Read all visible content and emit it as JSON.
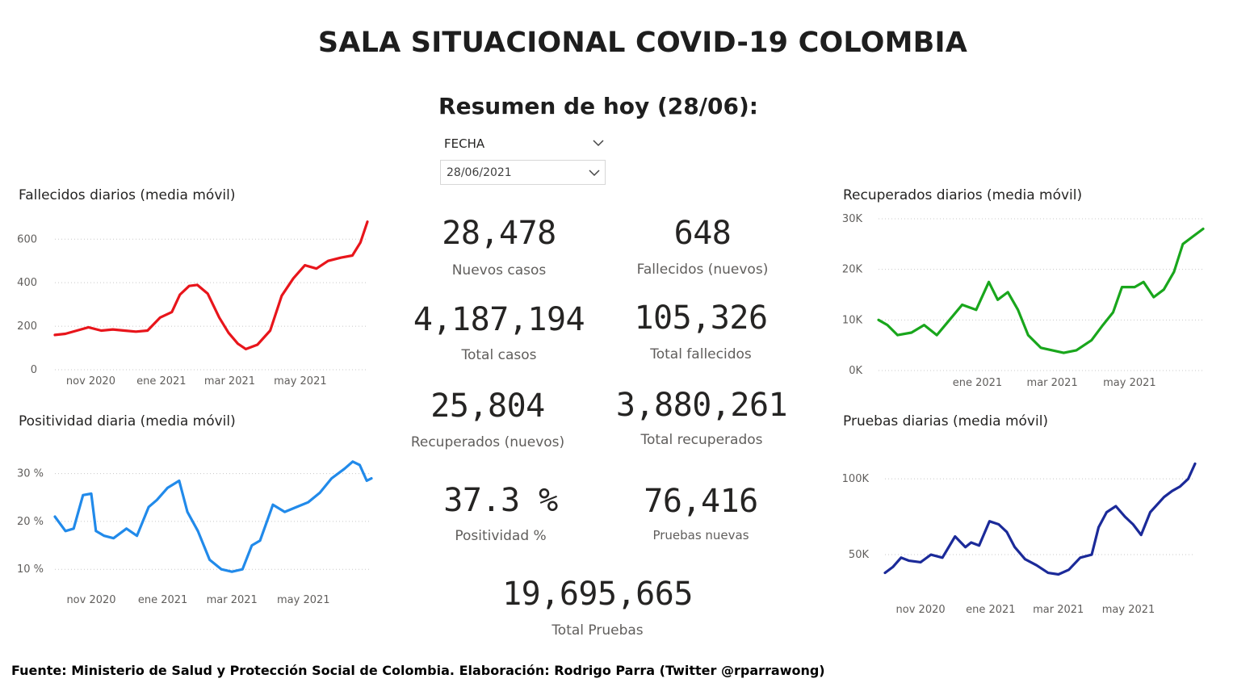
{
  "header": {
    "title": "SALA SITUACIONAL COVID-19 COLOMBIA",
    "subtitle": "Resumen de hoy (28/06):"
  },
  "slicer": {
    "label": "FECHA",
    "value": "28/06/2021",
    "icon": "chevron-down-icon"
  },
  "kpis": {
    "nuevos_casos": {
      "value": "28,478",
      "label": "Nuevos casos"
    },
    "fallecidos_nuevos": {
      "value": "648",
      "label": "Fallecidos (nuevos)"
    },
    "total_casos": {
      "value": "4,187,194",
      "label": "Total casos"
    },
    "total_fallecidos": {
      "value": "105,326",
      "label": "Total fallecidos"
    },
    "recuperados_nuevos": {
      "value": "25,804",
      "label": "Recuperados (nuevos)"
    },
    "total_recuperados": {
      "value": "3,880,261",
      "label": "Total recuperados"
    },
    "positividad": {
      "value": "37.3 %",
      "label": "Positividad %"
    },
    "pruebas_nuevas": {
      "value": "76,416",
      "label": "Pruebas nuevas"
    },
    "total_pruebas": {
      "value": "19,695,665",
      "label": "Total Pruebas"
    }
  },
  "footer": "Fuente: Ministerio de Salud y Protección Social de Colombia. Elaboración: Rodrigo Parra (Twitter @rparrawong)",
  "chart_data": [
    {
      "id": "fallecidos",
      "type": "line",
      "title": "Fallecidos diarios (media móvil)",
      "color": "#e8151b",
      "grid": true,
      "ylim": [
        0,
        690
      ],
      "yticks": [
        {
          "v": 0,
          "label": "0"
        },
        {
          "v": 200,
          "label": "200"
        },
        {
          "v": 400,
          "label": "400"
        },
        {
          "v": 600,
          "label": "600"
        }
      ],
      "xlim": [
        "2020-10-01",
        "2021-06-28"
      ],
      "xticks": [
        {
          "d": "2020-11-01",
          "label": "nov 2020"
        },
        {
          "d": "2021-01-01",
          "label": "ene 2021"
        },
        {
          "d": "2021-03-01",
          "label": "mar 2021"
        },
        {
          "d": "2021-05-01",
          "label": "may 2021"
        }
      ],
      "series": [
        {
          "x": [
            "2020-10-01",
            "2020-10-10",
            "2020-10-20",
            "2020-10-30",
            "2020-11-10",
            "2020-11-20",
            "2020-11-30",
            "2020-12-10",
            "2020-12-20",
            "2020-12-31",
            "2021-01-10",
            "2021-01-17",
            "2021-01-25",
            "2021-02-01",
            "2021-02-10",
            "2021-02-20",
            "2021-02-28",
            "2021-03-08",
            "2021-03-15",
            "2021-03-25",
            "2021-04-05",
            "2021-04-15",
            "2021-04-25",
            "2021-05-05",
            "2021-05-15",
            "2021-05-25",
            "2021-06-05",
            "2021-06-15",
            "2021-06-22",
            "2021-06-28"
          ],
          "y": [
            160,
            165,
            180,
            195,
            180,
            185,
            180,
            175,
            180,
            240,
            265,
            345,
            385,
            390,
            350,
            240,
            170,
            120,
            95,
            115,
            180,
            340,
            420,
            480,
            465,
            500,
            515,
            525,
            585,
            680
          ]
        }
      ]
    },
    {
      "id": "positividad",
      "type": "line",
      "title": "Positividad diaria (media móvil)",
      "color": "#218aea",
      "grid": true,
      "ylim": [
        7,
        35
      ],
      "yticks": [
        {
          "v": 10,
          "label": "10 %"
        },
        {
          "v": 20,
          "label": "20 %"
        },
        {
          "v": 30,
          "label": "30 %"
        }
      ],
      "xlim": [
        "2020-10-01",
        "2021-06-28"
      ],
      "xticks": [
        {
          "d": "2020-11-01",
          "label": "nov 2020"
        },
        {
          "d": "2021-01-01",
          "label": "ene 2021"
        },
        {
          "d": "2021-03-01",
          "label": "mar 2021"
        },
        {
          "d": "2021-05-01",
          "label": "may 2021"
        }
      ],
      "series": [
        {
          "x": [
            "2020-10-01",
            "2020-10-10",
            "2020-10-17",
            "2020-10-25",
            "2020-11-01",
            "2020-11-05",
            "2020-11-12",
            "2020-11-20",
            "2020-12-01",
            "2020-12-10",
            "2020-12-20",
            "2020-12-27",
            "2021-01-05",
            "2021-01-15",
            "2021-01-22",
            "2021-01-31",
            "2021-02-10",
            "2021-02-20",
            "2021-03-01",
            "2021-03-10",
            "2021-03-18",
            "2021-03-25",
            "2021-04-05",
            "2021-04-15",
            "2021-04-25",
            "2021-05-05",
            "2021-05-15",
            "2021-05-25",
            "2021-06-05",
            "2021-06-12",
            "2021-06-18",
            "2021-06-24",
            "2021-06-28"
          ],
          "y": [
            21,
            18,
            18.5,
            25.5,
            25.8,
            18,
            17,
            16.5,
            18.5,
            17,
            23,
            24.5,
            27,
            28.5,
            22,
            18,
            12,
            10,
            9.5,
            10,
            15,
            16,
            23.5,
            22,
            23,
            24,
            26,
            29,
            31,
            32.5,
            31.8,
            28.5,
            29
          ]
        }
      ]
    },
    {
      "id": "recuperados",
      "type": "line",
      "title": "Recuperados diarios (media móvil)",
      "color": "#19a61c",
      "grid": true,
      "ylim": [
        0,
        30000
      ],
      "yticks": [
        {
          "v": 0,
          "label": "0K"
        },
        {
          "v": 10000,
          "label": "10K"
        },
        {
          "v": 20000,
          "label": "20K"
        },
        {
          "v": 30000,
          "label": "30K"
        }
      ],
      "xlim": [
        "2020-10-15",
        "2021-06-28"
      ],
      "xticks": [
        {
          "d": "2021-01-01",
          "label": "ene 2021"
        },
        {
          "d": "2021-03-01",
          "label": "mar 2021"
        },
        {
          "d": "2021-05-01",
          "label": "may 2021"
        }
      ],
      "series": [
        {
          "x": [
            "2020-10-15",
            "2020-10-22",
            "2020-10-30",
            "2020-11-10",
            "2020-11-20",
            "2020-11-30",
            "2020-12-10",
            "2020-12-20",
            "2020-12-31",
            "2021-01-10",
            "2021-01-17",
            "2021-01-25",
            "2021-02-02",
            "2021-02-10",
            "2021-02-20",
            "2021-03-01",
            "2021-03-10",
            "2021-03-20",
            "2021-04-01",
            "2021-04-10",
            "2021-04-18",
            "2021-04-25",
            "2021-05-05",
            "2021-05-12",
            "2021-05-20",
            "2021-05-28",
            "2021-06-05",
            "2021-06-12",
            "2021-06-20",
            "2021-06-28"
          ],
          "y": [
            10000,
            9000,
            7000,
            7500,
            9000,
            7000,
            10000,
            13000,
            12000,
            17500,
            14000,
            15500,
            12000,
            7000,
            4500,
            4000,
            3500,
            4000,
            6000,
            9000,
            11500,
            16500,
            16500,
            17500,
            14500,
            16000,
            19500,
            25000,
            26500,
            28000
          ]
        }
      ]
    },
    {
      "id": "pruebas",
      "type": "line",
      "title": "Pruebas diarias (media móvil)",
      "color": "#1b2a99",
      "grid": true,
      "ylim": [
        25000,
        115000
      ],
      "yticks": [
        {
          "v": 50000,
          "label": "50K"
        },
        {
          "v": 100000,
          "label": "100K"
        }
      ],
      "xlim": [
        "2020-10-01",
        "2021-06-28"
      ],
      "xticks": [
        {
          "d": "2020-11-01",
          "label": "nov 2020"
        },
        {
          "d": "2021-01-01",
          "label": "ene 2021"
        },
        {
          "d": "2021-03-01",
          "label": "mar 2021"
        },
        {
          "d": "2021-05-01",
          "label": "may 2021"
        }
      ],
      "series": [
        {
          "x": [
            "2020-10-01",
            "2020-10-08",
            "2020-10-15",
            "2020-10-22",
            "2020-11-01",
            "2020-11-10",
            "2020-11-20",
            "2020-12-01",
            "2020-12-10",
            "2020-12-15",
            "2020-12-22",
            "2020-12-31",
            "2021-01-08",
            "2021-01-15",
            "2021-01-22",
            "2021-01-31",
            "2021-02-10",
            "2021-02-20",
            "2021-03-01",
            "2021-03-10",
            "2021-03-20",
            "2021-03-30",
            "2021-04-05",
            "2021-04-12",
            "2021-04-20",
            "2021-04-28",
            "2021-05-05",
            "2021-05-12",
            "2021-05-20",
            "2021-06-01",
            "2021-06-08",
            "2021-06-15",
            "2021-06-22",
            "2021-06-28"
          ],
          "y": [
            38000,
            42000,
            48000,
            46000,
            45000,
            50000,
            48000,
            62000,
            55000,
            58000,
            56000,
            72000,
            70000,
            65000,
            55000,
            47000,
            43000,
            38000,
            37000,
            40000,
            48000,
            50000,
            68000,
            78000,
            82000,
            75000,
            70000,
            63000,
            78000,
            88000,
            92000,
            95000,
            100000,
            110000
          ]
        }
      ]
    }
  ]
}
